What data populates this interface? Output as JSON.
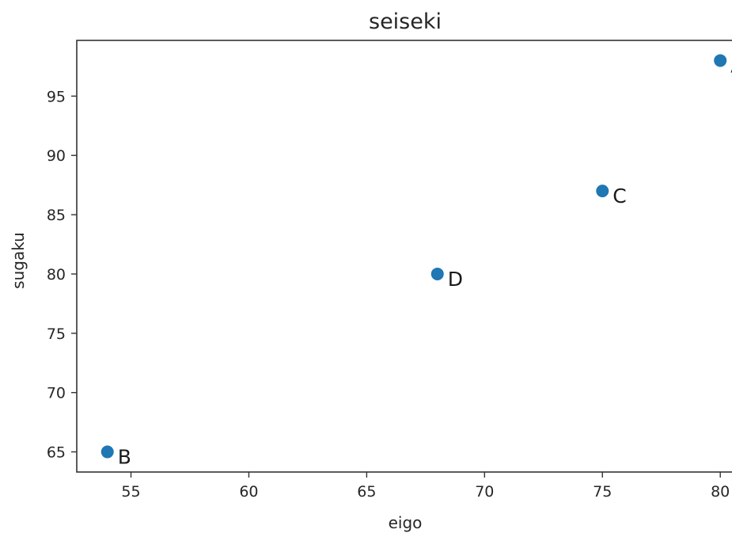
{
  "chart_data": {
    "type": "scatter",
    "title": "seiseki",
    "xlabel": "eigo",
    "ylabel": "sugaku",
    "xlim": [
      52.7,
      80.9
    ],
    "ylim": [
      63.3,
      99.7
    ],
    "xticks": [
      55,
      60,
      65,
      70,
      75,
      80
    ],
    "yticks": [
      65,
      70,
      75,
      80,
      85,
      90,
      95
    ],
    "grid": false,
    "point_color": "#1f77b4",
    "points": [
      {
        "label": "A",
        "x": 80,
        "y": 98
      },
      {
        "label": "B",
        "x": 54,
        "y": 65
      },
      {
        "label": "C",
        "x": 75,
        "y": 87
      },
      {
        "label": "D",
        "x": 68,
        "y": 80
      }
    ]
  }
}
